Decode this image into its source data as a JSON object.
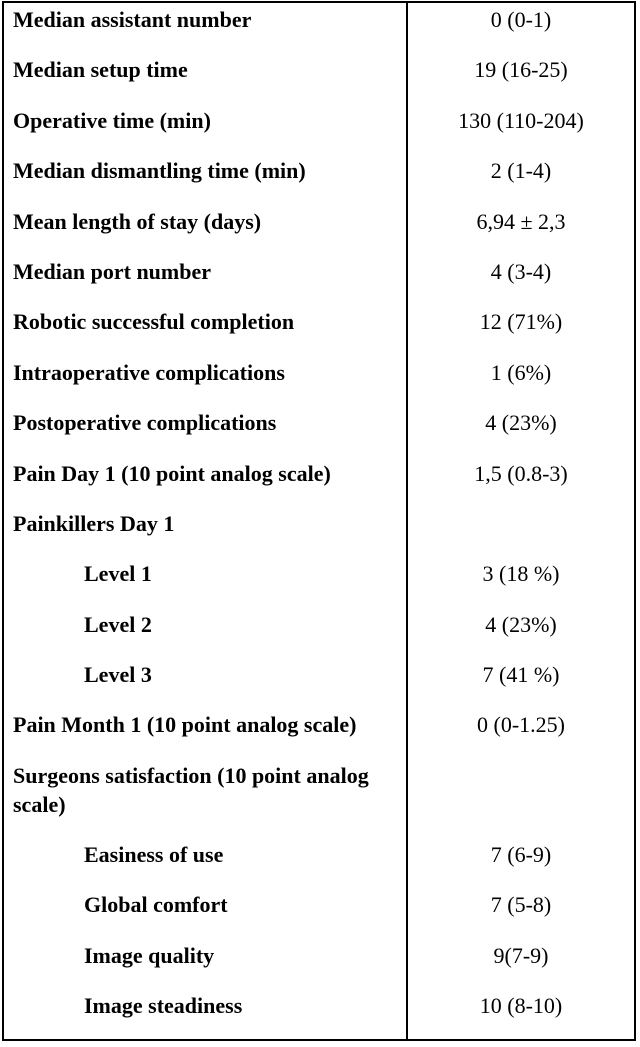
{
  "table": {
    "border_color": "#000000",
    "text_color": "#000000",
    "background_color": "#ffffff",
    "rows": [
      {
        "label": "Median assistant number",
        "value": "0 (0-1)",
        "indent": false,
        "section": false
      },
      {
        "label": "Median setup time",
        "value": "19 (16-25)",
        "indent": false,
        "section": false
      },
      {
        "label": "Operative time (min)",
        "value": "130 (110-204)",
        "indent": false,
        "section": false
      },
      {
        "label": "Median dismantling time (min)",
        "value": "2 (1-4)",
        "indent": false,
        "section": false
      },
      {
        "label": "Mean length of stay (days)",
        "value": "6,94 ± 2,3",
        "indent": false,
        "section": false
      },
      {
        "label": "Median port number",
        "value": "4 (3-4)",
        "indent": false,
        "section": false
      },
      {
        "label": "Robotic successful completion",
        "value": "12 (71%)",
        "indent": false,
        "section": false
      },
      {
        "label": "Intraoperative complications",
        "value": "1 (6%)",
        "indent": false,
        "section": false
      },
      {
        "label": "Postoperative complications",
        "value": "4 (23%)",
        "indent": false,
        "section": false
      },
      {
        "label": "Pain Day 1 (10 point analog scale)",
        "value": "1,5 (0.8-3)",
        "indent": false,
        "section": false
      },
      {
        "label": "Painkillers Day 1",
        "value": "",
        "indent": false,
        "section": true
      },
      {
        "label": "Level 1",
        "value": "3 (18 %)",
        "indent": true,
        "section": false
      },
      {
        "label": "Level 2",
        "value": "4 (23%)",
        "indent": true,
        "section": false
      },
      {
        "label": "Level 3",
        "value": "7 (41 %)",
        "indent": true,
        "section": false
      },
      {
        "label": "Pain Month 1 (10 point analog scale)",
        "value": "0 (0-1.25)",
        "indent": false,
        "section": false
      },
      {
        "label": "Surgeons satisfaction (10 point analog scale)",
        "value": "",
        "indent": false,
        "section": true
      },
      {
        "label": "Easiness of use",
        "value": "7 (6-9)",
        "indent": true,
        "section": false
      },
      {
        "label": "Global comfort",
        "value": "7 (5-8)",
        "indent": true,
        "section": false
      },
      {
        "label": "Image quality",
        "value": "9(7-9)",
        "indent": true,
        "section": false
      },
      {
        "label": "Image steadiness",
        "value": "10 (8-10)",
        "indent": true,
        "section": false
      }
    ]
  }
}
